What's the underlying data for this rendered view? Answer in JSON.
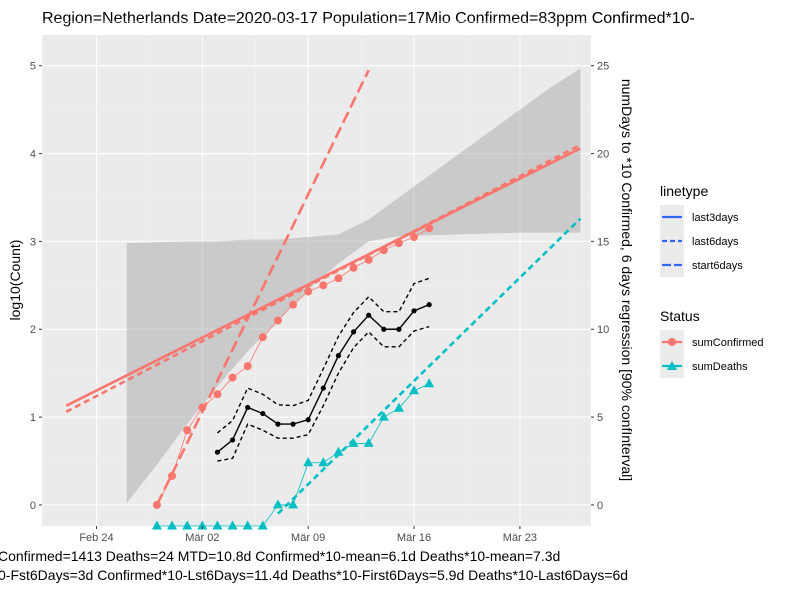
{
  "chart_data": {
    "type": "line",
    "title": "Region=Netherlands Date=2020-03-17  Population=17Mio Confirmed=83ppm  Confirmed*10-",
    "ylabel": "log10(Count)",
    "y2label": "numDays to *10 Confirmed, 6 days regression [90% confInterval]",
    "x_ticks": [
      {
        "label": "Feb 24",
        "day": -2
      },
      {
        "label": "Mär 02",
        "day": 5
      },
      {
        "label": "Mär 09",
        "day": 12
      },
      {
        "label": "Mär 16",
        "day": 19
      },
      {
        "label": "Mär 23",
        "day": 26
      }
    ],
    "y_ticks": [
      "0",
      "1",
      "2",
      "3",
      "4",
      "5"
    ],
    "y2_ticks": [
      "0",
      "5",
      "10",
      "15",
      "20",
      "25"
    ],
    "xlim": [
      -5.6,
      30.7
    ],
    "ylim": [
      -0.24,
      5.35
    ],
    "y2_scale": 5,
    "ci_band": [
      {
        "day": 0,
        "lo": 0.02,
        "hi": 2.98
      },
      {
        "day": 2,
        "lo": 0.46,
        "hi": 2.99
      },
      {
        "day": 4,
        "lo": 0.92,
        "hi": 3.0
      },
      {
        "day": 6,
        "lo": 1.35,
        "hi": 3.0
      },
      {
        "day": 8,
        "lo": 1.75,
        "hi": 3.02
      },
      {
        "day": 10,
        "lo": 2.1,
        "hi": 3.02
      },
      {
        "day": 12,
        "lo": 2.45,
        "hi": 3.05
      },
      {
        "day": 14,
        "lo": 2.75,
        "hi": 3.08
      },
      {
        "day": 16,
        "lo": 3.0,
        "hi": 3.25
      },
      {
        "day": 18,
        "lo": 3.06,
        "hi": 3.5
      },
      {
        "day": 20,
        "lo": 3.07,
        "hi": 3.75
      },
      {
        "day": 22,
        "lo": 3.08,
        "hi": 4.0
      },
      {
        "day": 24,
        "lo": 3.09,
        "hi": 4.25
      },
      {
        "day": 26,
        "lo": 3.1,
        "hi": 4.5
      },
      {
        "day": 28,
        "lo": 3.1,
        "hi": 4.75
      },
      {
        "day": 30,
        "lo": 3.1,
        "hi": 4.97
      }
    ],
    "series": [
      {
        "name": "sumConfirmed",
        "status": "sumConfirmed",
        "color": "#f8766d",
        "marker": "circle",
        "points": [
          [
            2,
            0.0
          ],
          [
            3,
            0.33
          ],
          [
            4,
            0.85
          ],
          [
            5,
            1.11
          ],
          [
            6,
            1.26
          ],
          [
            7,
            1.45
          ],
          [
            8,
            1.58
          ],
          [
            9,
            1.91
          ],
          [
            10,
            2.1
          ],
          [
            11,
            2.28
          ],
          [
            12,
            2.43
          ],
          [
            13,
            2.5
          ],
          [
            14,
            2.58
          ],
          [
            15,
            2.7
          ],
          [
            16,
            2.79
          ],
          [
            17,
            2.9
          ],
          [
            18,
            2.98
          ],
          [
            19,
            3.05
          ],
          [
            20,
            3.15
          ]
        ]
      },
      {
        "name": "sumDeaths",
        "status": "sumDeaths",
        "color": "#00bfc4",
        "marker": "triangle",
        "points": [
          [
            2,
            -0.24
          ],
          [
            3,
            -0.24
          ],
          [
            4,
            -0.24
          ],
          [
            5,
            -0.24
          ],
          [
            6,
            -0.24
          ],
          [
            7,
            -0.24
          ],
          [
            8,
            -0.24
          ],
          [
            9,
            -0.24
          ],
          [
            10,
            0.0
          ],
          [
            11,
            0.0
          ],
          [
            12,
            0.48
          ],
          [
            13,
            0.48
          ],
          [
            14,
            0.6
          ],
          [
            15,
            0.7
          ],
          [
            16,
            0.7
          ],
          [
            17,
            1.0
          ],
          [
            18,
            1.1
          ],
          [
            19,
            1.3
          ],
          [
            20,
            1.38
          ]
        ]
      },
      {
        "name": "numDays to *10 Confirmed",
        "color": "#000000",
        "marker": "dot",
        "points": [
          [
            6,
            0.6
          ],
          [
            7,
            0.74
          ],
          [
            8,
            1.11
          ],
          [
            9,
            1.04
          ],
          [
            10,
            0.92
          ],
          [
            11,
            0.92
          ],
          [
            12,
            0.97
          ],
          [
            13,
            1.33
          ],
          [
            14,
            1.7
          ],
          [
            15,
            1.97
          ],
          [
            16,
            2.16
          ],
          [
            17,
            2.0
          ],
          [
            18,
            2.0
          ],
          [
            19,
            2.21
          ],
          [
            20,
            2.28
          ]
        ]
      },
      {
        "name": "ci upper",
        "color": "#000000",
        "dash": "dashed",
        "points": [
          [
            6,
            0.82
          ],
          [
            7,
            0.96
          ],
          [
            8,
            1.33
          ],
          [
            9,
            1.26
          ],
          [
            10,
            1.14
          ],
          [
            11,
            1.13
          ],
          [
            12,
            1.19
          ],
          [
            13,
            1.55
          ],
          [
            14,
            1.92
          ],
          [
            15,
            2.19
          ],
          [
            16,
            2.37
          ],
          [
            17,
            2.2
          ],
          [
            18,
            2.2
          ],
          [
            19,
            2.52
          ],
          [
            20,
            2.58
          ]
        ]
      },
      {
        "name": "ci lower",
        "color": "#000000",
        "dash": "dashed",
        "points": [
          [
            6,
            0.5
          ],
          [
            7,
            0.53
          ],
          [
            8,
            0.92
          ],
          [
            9,
            0.85
          ],
          [
            10,
            0.76
          ],
          [
            11,
            0.76
          ],
          [
            12,
            0.8
          ],
          [
            13,
            1.13
          ],
          [
            14,
            1.5
          ],
          [
            15,
            1.79
          ],
          [
            16,
            1.97
          ],
          [
            17,
            1.8
          ],
          [
            18,
            1.8
          ],
          [
            19,
            1.98
          ],
          [
            20,
            2.03
          ]
        ]
      }
    ],
    "regression_lines": [
      {
        "name": "last3days",
        "color": "#f8766d",
        "dash": "solid",
        "points": [
          [
            -4,
            1.13
          ],
          [
            30,
            4.06
          ]
        ]
      },
      {
        "name": "last6days",
        "color": "#f8766d",
        "dash": "dashed",
        "points": [
          [
            -4,
            1.06
          ],
          [
            30,
            4.1
          ]
        ]
      },
      {
        "name": "start6days",
        "color": "#f8766d",
        "dash": "longdash",
        "points": [
          [
            2,
            0.0
          ],
          [
            16,
            4.95
          ]
        ]
      },
      {
        "name": "deaths last6days",
        "color": "#00bfc4",
        "dash": "dashed",
        "points": [
          [
            10,
            -0.1
          ],
          [
            30,
            3.26
          ]
        ]
      }
    ],
    "legend": {
      "placement": "right",
      "linetype_title": "linetype",
      "linetype_items": [
        {
          "label": "last3days",
          "dash": "solid"
        },
        {
          "label": "last6days",
          "dash": "dashed"
        },
        {
          "label": "start6days",
          "dash": "longdash"
        }
      ],
      "legend_line_color": "#3366ff",
      "status_title": "Status",
      "status_items": [
        {
          "label": "sumConfirmed",
          "color": "#f8766d",
          "marker": "circle"
        },
        {
          "label": "sumDeaths",
          "color": "#00bfc4",
          "marker": "triangle"
        }
      ]
    },
    "footer": [
      "Confirmed=1413 Deaths=24  MTD=10.8d    Confirmed*10-mean=6.1d  Deaths*10-mean=7.3d",
      "0-Fst6Days=3d  Confirmed*10-Lst6Days=11.4d    Deaths*10-First6Days=5.9d  Deaths*10-Last6Days=6d"
    ]
  }
}
